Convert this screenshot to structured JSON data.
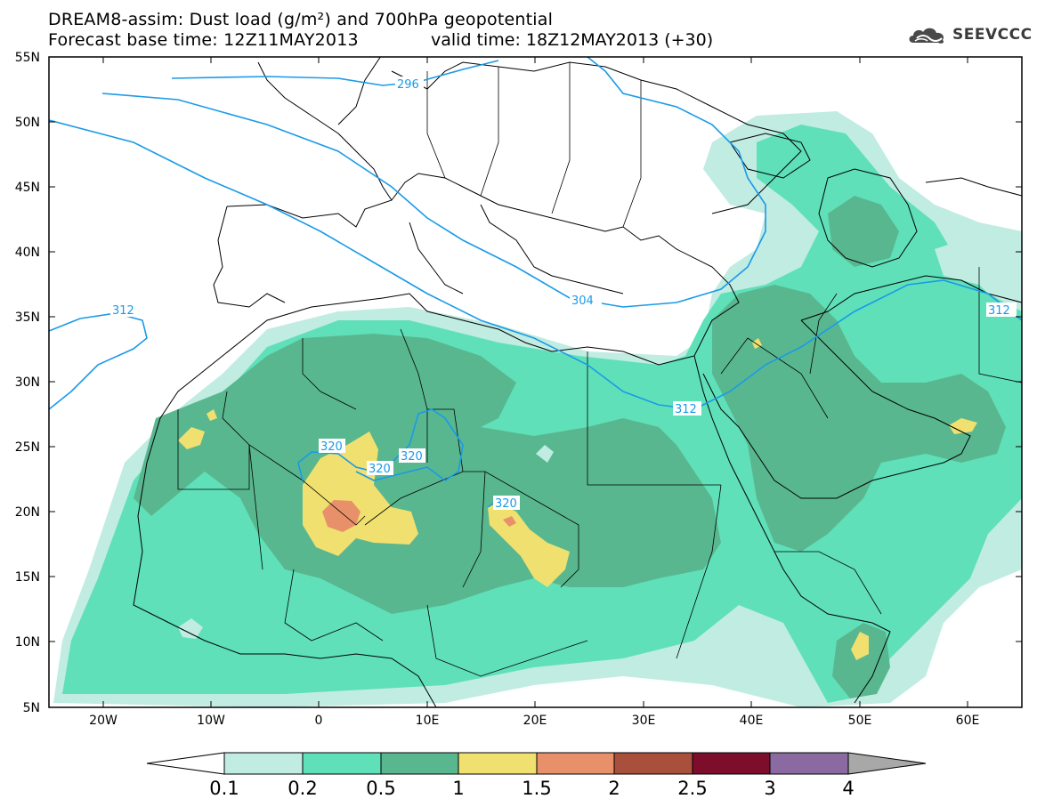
{
  "title_line1": "DREAM8-assim: Dust load (g/m²) and 700hPa geopotential",
  "title_line2": "Forecast base time: 12Z11MAY2013",
  "valid_time": "valid time: 18Z12MAY2013 (+30)",
  "logo_text": "SEEVCCC",
  "lat_labels": [
    "55N",
    "50N",
    "45N",
    "40N",
    "35N",
    "30N",
    "25N",
    "20N",
    "15N",
    "10N",
    "5N"
  ],
  "lon_labels": [
    "20W",
    "10W",
    "0",
    "10E",
    "20E",
    "30E",
    "40E",
    "50E",
    "60E"
  ],
  "contour_labels": [
    "296",
    "312",
    "304",
    "312",
    "312",
    "320",
    "320",
    "320",
    "320"
  ],
  "colorbar": {
    "tick_labels": [
      "0.1",
      "0.2",
      "0.5",
      "1",
      "1.5",
      "2",
      "2.5",
      "3",
      "4"
    ],
    "colors": [
      "#ffffff",
      "#c0ece2",
      "#5fe0b8",
      "#59b790",
      "#f0e070",
      "#e8906a",
      "#a8503c",
      "#7c0e2c",
      "#8a6aa0",
      "#a8a8a8"
    ]
  }
}
